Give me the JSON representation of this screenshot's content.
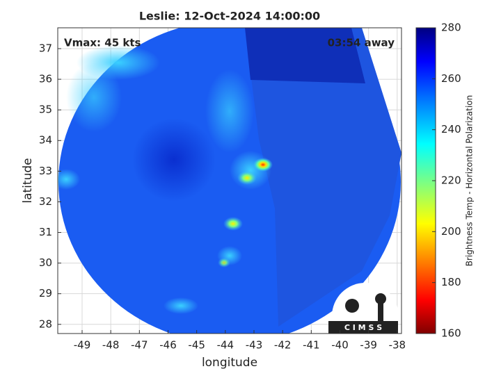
{
  "chart_data": {
    "type": "image-map",
    "title": "Leslie: 12-Oct-2024 14:00:00",
    "annotations": [
      "Vmax: 45 kts",
      "03:54 away"
    ],
    "xlabel": "longitude",
    "ylabel": "latitude",
    "xlim": [
      -49.85,
      -37.85
    ],
    "xticks": [
      -49,
      -48,
      -47,
      -46,
      -45,
      -44,
      -43,
      -42,
      -41,
      -40,
      -39,
      -38
    ],
    "ylim": [
      27.7,
      37.68
    ],
    "yticks": [
      28,
      29,
      30,
      31,
      32,
      33,
      34,
      35,
      36,
      37
    ],
    "grid": true,
    "colorbar": {
      "label": "Brightness Temp - Horizontal Polarization",
      "lim": [
        160,
        280
      ],
      "ticks": [
        160,
        180,
        200,
        220,
        240,
        260,
        280
      ],
      "colormap": "jet"
    },
    "logo": "C I M S S"
  }
}
